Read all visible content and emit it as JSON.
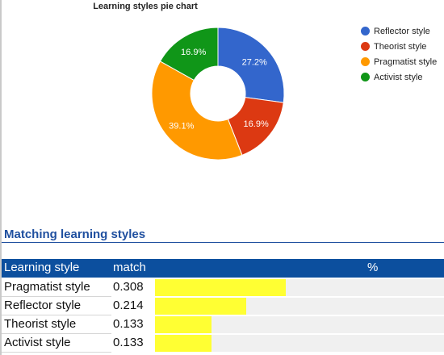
{
  "chart_data": {
    "type": "pie",
    "title": "Learning styles pie chart",
    "donut": true,
    "legend_position": "right",
    "slices": [
      {
        "label": "Reflector style",
        "value": 27.2,
        "display": "27.2%",
        "color": "#3366cc"
      },
      {
        "label": "Theorist style",
        "value": 16.9,
        "display": "16.9%",
        "color": "#dc3912"
      },
      {
        "label": "Pragmatist style",
        "value": 39.1,
        "display": "39.1%",
        "color": "#ff9900"
      },
      {
        "label": "Activist style",
        "value": 16.9,
        "display": "16.9%",
        "color": "#109618"
      }
    ]
  },
  "section": {
    "title": "Matching learning styles"
  },
  "table": {
    "headers": {
      "style": "Learning style",
      "match": "match",
      "pct": "%"
    },
    "rows": [
      {
        "style": "Pragmatist style",
        "match": "0.308",
        "fraction": 0.308
      },
      {
        "style": "Reflector style",
        "match": "0.214",
        "fraction": 0.214
      },
      {
        "style": "Theorist style",
        "match": "0.133",
        "fraction": 0.133
      },
      {
        "style": "Activist style",
        "match": "0.133",
        "fraction": 0.133
      }
    ]
  },
  "colors": {
    "header_bg": "#0c4f9e",
    "section_title": "#1f4f9f",
    "bar_fill": "#ffff33",
    "bar_track": "#f0f0f0"
  }
}
